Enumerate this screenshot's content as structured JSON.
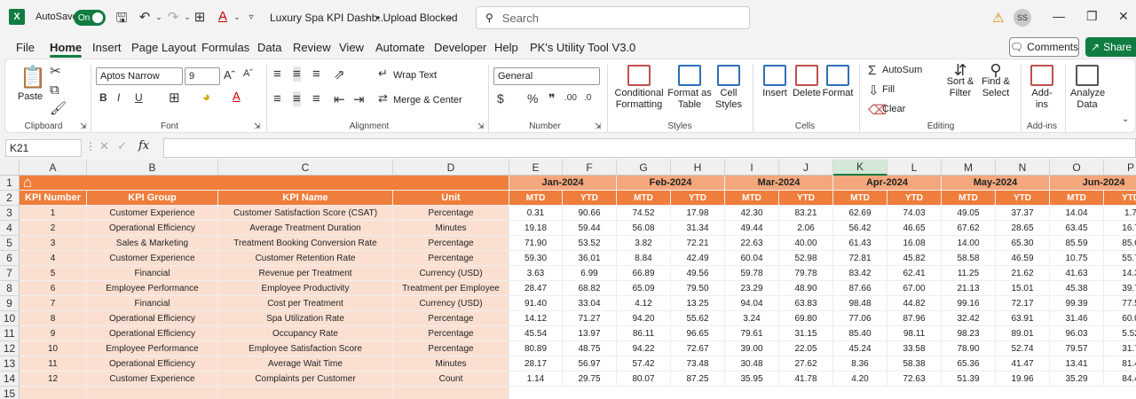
{
  "titlebar": {
    "app_logo": "X",
    "autosave_label": "AutoSave",
    "autosave_state": "On",
    "doc_title": "Luxury Spa KPI Dashb...",
    "doc_status": "• Upload Blocked",
    "search_placeholder": "Search",
    "user_initials": "SS"
  },
  "menu": {
    "items": [
      "File",
      "Home",
      "Insert",
      "Page Layout",
      "Formulas",
      "Data",
      "Review",
      "View",
      "Automate",
      "Developer",
      "Help",
      "PK's Utility Tool V3.0"
    ],
    "active": "Home",
    "comments": "Comments",
    "share": "Share"
  },
  "ribbon": {
    "clipboard": {
      "paste": "Paste",
      "label": "Clipboard"
    },
    "font": {
      "name": "Aptos Narrow",
      "size": "9",
      "label": "Font"
    },
    "alignment": {
      "wrap": "Wrap Text",
      "merge": "Merge & Center",
      "label": "Alignment"
    },
    "number": {
      "format": "General",
      "label": "Number"
    },
    "styles": {
      "conditional": "Conditional Formatting",
      "format_table": "Format as Table",
      "cell_styles": "Cell Styles",
      "label": "Styles"
    },
    "cells": {
      "insert": "Insert",
      "delete": "Delete",
      "format": "Format",
      "label": "Cells"
    },
    "editing": {
      "autosum": "AutoSum",
      "fill": "Fill",
      "clear": "Clear",
      "sort": "Sort & Filter",
      "find": "Find & Select",
      "label": "Editing"
    },
    "addins": {
      "addins": "Add-ins",
      "label": "Add-ins"
    },
    "analyze": {
      "label": "Analyze Data"
    }
  },
  "formula_bar": {
    "name_box": "K21",
    "fx": "fx",
    "formula": ""
  },
  "sheet": {
    "columns": [
      "A",
      "B",
      "C",
      "D",
      "E",
      "F",
      "G",
      "H",
      "I",
      "J",
      "K",
      "L",
      "M",
      "N",
      "O",
      "P"
    ],
    "selected_column": "K",
    "rows": [
      "1",
      "2",
      "3",
      "4",
      "5",
      "6",
      "7",
      "8",
      "9",
      "10",
      "11",
      "12",
      "13",
      "14",
      "15"
    ],
    "headers": [
      "KPI Number",
      "KPI Group",
      "KPI Name",
      "Unit"
    ],
    "months": [
      "Jan-2024",
      "Feb-2024",
      "Mar-2024",
      "Apr-2024",
      "May-2024",
      "Jun-2024"
    ],
    "mtd_label": "MTD",
    "ytd_label": "YTD",
    "records": [
      {
        "num": "1",
        "group": "Customer Experience",
        "name": "Customer Satisfaction Score (CSAT)",
        "unit": "Percentage",
        "vals": [
          "0.31",
          "90.66",
          "74.52",
          "17.98",
          "42.30",
          "83.21",
          "62.69",
          "74.03",
          "49.05",
          "37.37",
          "14.04",
          "1.7"
        ]
      },
      {
        "num": "2",
        "group": "Operational Efficiency",
        "name": "Average Treatment Duration",
        "unit": "Minutes",
        "vals": [
          "19.18",
          "59.44",
          "56.08",
          "31.34",
          "49.44",
          "2.06",
          "56.42",
          "46.65",
          "67.62",
          "28.65",
          "63.45",
          "16.7"
        ]
      },
      {
        "num": "3",
        "group": "Sales & Marketing",
        "name": "Treatment Booking Conversion Rate",
        "unit": "Percentage",
        "vals": [
          "71.90",
          "53.52",
          "3.82",
          "72.21",
          "22.63",
          "40.00",
          "61.43",
          "16.08",
          "14.00",
          "65.30",
          "85.59",
          "85.6"
        ]
      },
      {
        "num": "4",
        "group": "Customer Experience",
        "name": "Customer Retention Rate",
        "unit": "Percentage",
        "vals": [
          "59.30",
          "36.01",
          "8.84",
          "42.49",
          "60.04",
          "52.98",
          "72.81",
          "45.82",
          "58.58",
          "46.59",
          "10.75",
          "55.7"
        ]
      },
      {
        "num": "5",
        "group": "Financial",
        "name": "Revenue per Treatment",
        "unit": "Currency (USD)",
        "vals": [
          "3.63",
          "6.99",
          "66.89",
          "49.56",
          "59.78",
          "79.78",
          "83.42",
          "62.41",
          "11.25",
          "21.62",
          "41.63",
          "14.3"
        ]
      },
      {
        "num": "6",
        "group": "Employee Performance",
        "name": "Employee Productivity",
        "unit": "Treatment per Employee",
        "vals": [
          "28.47",
          "68.82",
          "65.09",
          "79.50",
          "23.29",
          "48.90",
          "87.66",
          "67.00",
          "21.13",
          "15.01",
          "45.38",
          "39.7"
        ]
      },
      {
        "num": "7",
        "group": "Financial",
        "name": "Cost per Treatment",
        "unit": "Currency (USD)",
        "vals": [
          "91.40",
          "33.04",
          "4.12",
          "13.25",
          "94.04",
          "63.83",
          "98.48",
          "44.82",
          "99.16",
          "72.17",
          "99.39",
          "77.5"
        ]
      },
      {
        "num": "8",
        "group": "Operational Efficiency",
        "name": "Spa Utilization Rate",
        "unit": "Percentage",
        "vals": [
          "14.12",
          "71.27",
          "94.20",
          "55.62",
          "3.24",
          "69.80",
          "77.06",
          "87.96",
          "32.42",
          "63.91",
          "31.46",
          "60.0"
        ]
      },
      {
        "num": "9",
        "group": "Operational Efficiency",
        "name": "Occupancy Rate",
        "unit": "Percentage",
        "vals": [
          "45.54",
          "13.97",
          "86.11",
          "96.65",
          "79.61",
          "31.15",
          "85.40",
          "98.11",
          "98.23",
          "89.01",
          "96.03",
          "5.52"
        ]
      },
      {
        "num": "10",
        "group": "Employee Performance",
        "name": "Employee Satisfaction Score",
        "unit": "Percentage",
        "vals": [
          "80.89",
          "48.75",
          "94.22",
          "72.67",
          "39.00",
          "22.05",
          "45.24",
          "33.58",
          "78.90",
          "52.74",
          "79.57",
          "31.7"
        ]
      },
      {
        "num": "11",
        "group": "Operational Efficiency",
        "name": "Average Wait Time",
        "unit": "Minutes",
        "vals": [
          "28.17",
          "56.97",
          "57.42",
          "73.48",
          "30.48",
          "27.62",
          "8.36",
          "58.38",
          "65.36",
          "41.47",
          "13.41",
          "81.4"
        ]
      },
      {
        "num": "12",
        "group": "Customer Experience",
        "name": "Complaints per Customer",
        "unit": "Count",
        "vals": [
          "1.14",
          "29.75",
          "80.07",
          "87.25",
          "35.95",
          "41.78",
          "4.20",
          "72.63",
          "51.39",
          "19.96",
          "35.29",
          "84.4"
        ]
      }
    ]
  }
}
